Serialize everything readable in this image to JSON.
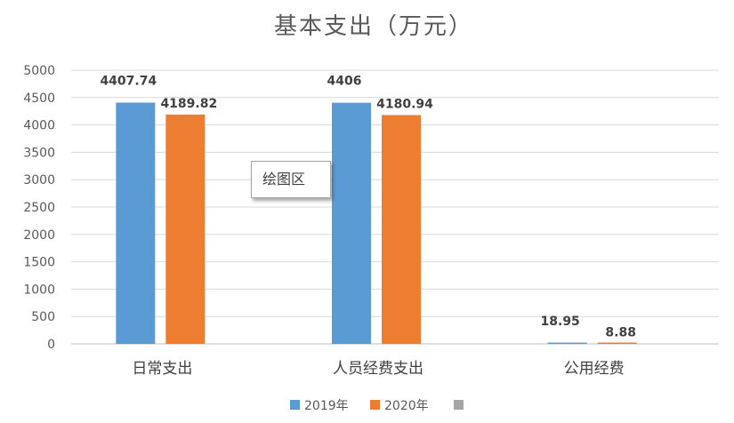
{
  "chart_data": {
    "type": "bar",
    "title": "基本支出（万元）",
    "categories": [
      "日常支出",
      "人员经费支出",
      "公用经费"
    ],
    "series": [
      {
        "name": "2019年",
        "values": [
          4407.74,
          4406,
          18.95
        ],
        "labels": [
          "4407.74",
          "4406",
          "18.95"
        ],
        "color": "#5b9bd5"
      },
      {
        "name": "2020年",
        "values": [
          4189.82,
          4180.94,
          8.88
        ],
        "labels": [
          "4189.82",
          "4180.94",
          "8.88"
        ],
        "color": "#ed7d31"
      }
    ],
    "legend_extra_color": "#a5a5a5",
    "ylim": [
      0,
      5000
    ],
    "yticks": [
      0,
      500,
      1000,
      1500,
      2000,
      2500,
      3000,
      3500,
      4000,
      4500,
      5000
    ],
    "grid": true,
    "legend_position": "bottom"
  },
  "tooltip": {
    "text": "绘图区"
  }
}
